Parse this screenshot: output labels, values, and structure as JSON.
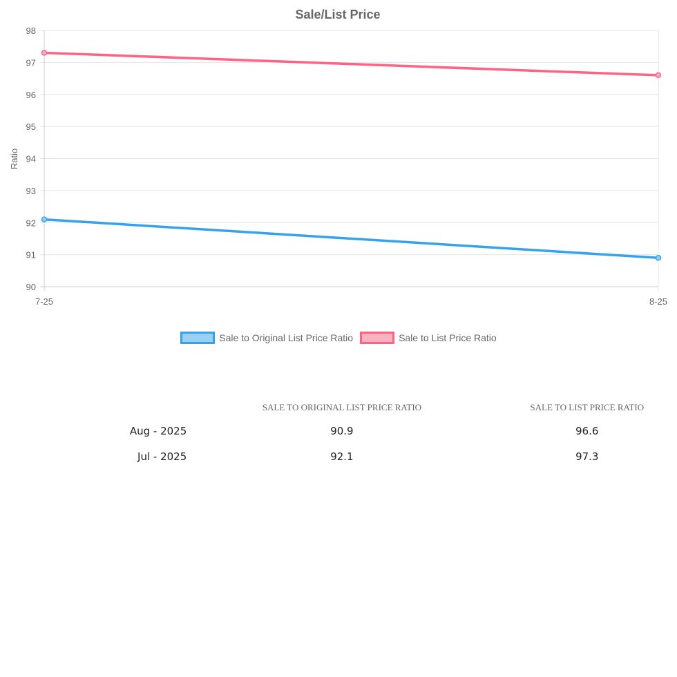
{
  "chart_data": {
    "type": "line",
    "title": "Sale/List Price",
    "xlabel": "",
    "ylabel": "Ratio",
    "categories": [
      "7-25",
      "8-25"
    ],
    "ylim": [
      90,
      98
    ],
    "yticks": [
      90,
      91,
      92,
      93,
      94,
      95,
      96,
      97,
      98
    ],
    "grid": true,
    "legend_position": "bottom",
    "series": [
      {
        "name": "Sale to Original List Price Ratio",
        "values": [
          92.1,
          90.9
        ],
        "color": "#36a2eb",
        "fill": "#9ad0f5"
      },
      {
        "name": "Sale to List Price Ratio",
        "values": [
          97.3,
          96.6
        ],
        "color": "#ff6384",
        "fill": "#ffb1c1"
      }
    ]
  },
  "table": {
    "headers": [
      "",
      "Sale to Original List Price Ratio",
      "Sale to List Price Ratio"
    ],
    "rows": [
      {
        "date": "Aug - 2025",
        "orig": "90.9",
        "list": "96.6"
      },
      {
        "date": "Jul - 2025",
        "orig": "92.1",
        "list": "97.3"
      }
    ]
  }
}
